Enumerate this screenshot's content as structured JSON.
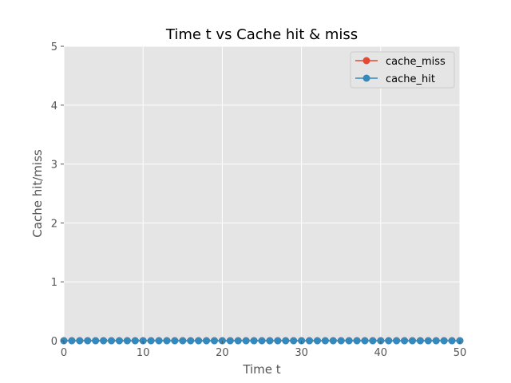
{
  "chart_data": {
    "type": "line",
    "title": "Time t vs Cache hit & miss",
    "xlabel": "Time t",
    "ylabel": "Cache hit/miss",
    "xlim": [
      0,
      50
    ],
    "ylim": [
      0,
      5
    ],
    "xticks": [
      "0",
      "10",
      "20",
      "30",
      "40",
      "50"
    ],
    "yticks": [
      "0",
      "1",
      "2",
      "3",
      "4",
      "5"
    ],
    "grid": true,
    "legend": "top-right",
    "x": [
      0,
      1,
      2,
      3,
      4,
      5,
      6,
      7,
      8,
      9,
      10,
      11,
      12,
      13,
      14,
      15,
      16,
      17,
      18,
      19,
      20,
      21,
      22,
      23,
      24,
      25,
      26,
      27,
      28,
      29,
      30,
      31,
      32,
      33,
      34,
      35,
      36,
      37,
      38,
      39,
      40,
      41,
      42,
      43,
      44,
      45,
      46,
      47,
      48,
      49,
      50
    ],
    "series": [
      {
        "name": "cache_miss",
        "color": "#E24A33",
        "values": [
          0,
          0,
          0,
          0,
          0,
          0,
          0,
          0,
          0,
          0,
          0,
          0,
          0,
          0,
          0,
          0,
          0,
          0,
          0,
          0,
          0,
          0,
          0,
          0,
          0,
          0,
          0,
          0,
          0,
          0,
          0,
          0,
          0,
          0,
          0,
          0,
          0,
          0,
          0,
          0,
          0,
          0,
          0,
          0,
          0,
          0,
          0,
          0,
          0,
          0,
          0
        ]
      },
      {
        "name": "cache_hit",
        "color": "#348ABD",
        "values": [
          0,
          0,
          0,
          0,
          0,
          0,
          0,
          0,
          0,
          0,
          0,
          0,
          0,
          0,
          0,
          0,
          0,
          0,
          0,
          0,
          0,
          0,
          0,
          0,
          0,
          0,
          0,
          0,
          0,
          0,
          0,
          0,
          0,
          0,
          0,
          0,
          0,
          0,
          0,
          0,
          0,
          0,
          0,
          0,
          0,
          0,
          0,
          0,
          0,
          0,
          0
        ]
      }
    ]
  }
}
